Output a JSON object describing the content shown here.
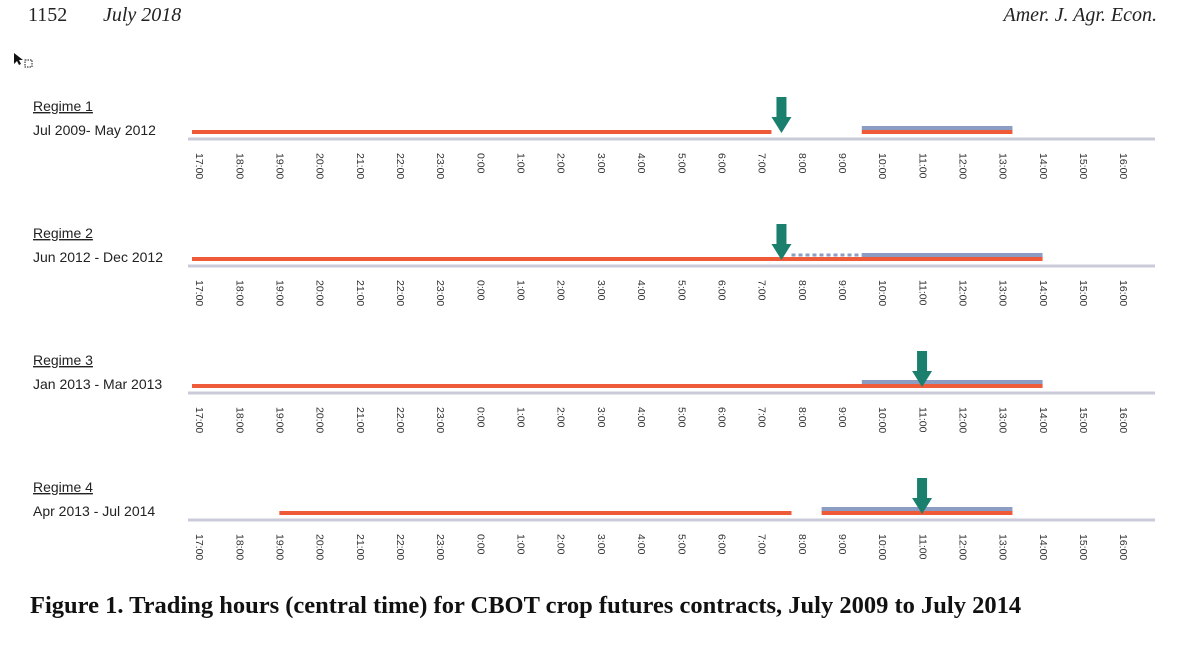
{
  "header": {
    "page_number": "1152",
    "date": "July 2018",
    "journal": "Amer. J. Agr. Econ."
  },
  "caption": "Figure 1. Trading hours (central time) for CBOT crop futures contracts, July 2009 to July 2014",
  "colors": {
    "electronic": "#ef5b39",
    "open_outcry": "#8b9dc3",
    "arrow": "#1a7f6c",
    "baseline": "#c9ccd8"
  },
  "chart_data": {
    "type": "timeline",
    "x_ticks": [
      "17:00",
      "18:00",
      "19:00",
      "20:00",
      "21:00",
      "22:00",
      "23:00",
      "0:00",
      "1:00",
      "2:00",
      "3:00",
      "4:00",
      "5:00",
      "6:00",
      "7:00",
      "8:00",
      "9:00",
      "10:00",
      "11:00",
      "12:00",
      "13:00",
      "14:00",
      "15:00",
      "16:00"
    ],
    "regimes": [
      {
        "label": "Regime 1",
        "period": "Jul 2009- May 2012",
        "electronic_sessions": [
          [
            "17:00",
            "7:15"
          ],
          [
            "9:30",
            "13:15"
          ]
        ],
        "open_outcry_sessions": [
          [
            "9:30",
            "13:15"
          ]
        ],
        "arrow_at": "7:30",
        "dotted_segments": []
      },
      {
        "label": "Regime 2",
        "period": "Jun 2012 - Dec 2012",
        "electronic_sessions": [
          [
            "17:00",
            "14:00"
          ]
        ],
        "open_outcry_sessions": [
          [
            "9:30",
            "14:00"
          ]
        ],
        "arrow_at": "7:30",
        "dotted_segments": [
          [
            "7:45",
            "9:30"
          ]
        ]
      },
      {
        "label": "Regime 3",
        "period": "Jan 2013 - Mar 2013",
        "electronic_sessions": [
          [
            "17:00",
            "14:00"
          ]
        ],
        "open_outcry_sessions": [
          [
            "9:30",
            "14:00"
          ]
        ],
        "arrow_at": "11:00",
        "dotted_segments": []
      },
      {
        "label": "Regime 4",
        "period": "Apr 2013 - Jul 2014",
        "electronic_sessions": [
          [
            "19:00",
            "7:45"
          ],
          [
            "8:30",
            "13:15"
          ]
        ],
        "open_outcry_sessions": [
          [
            "8:30",
            "13:15"
          ]
        ],
        "arrow_at": "11:00",
        "dotted_segments": []
      }
    ]
  }
}
